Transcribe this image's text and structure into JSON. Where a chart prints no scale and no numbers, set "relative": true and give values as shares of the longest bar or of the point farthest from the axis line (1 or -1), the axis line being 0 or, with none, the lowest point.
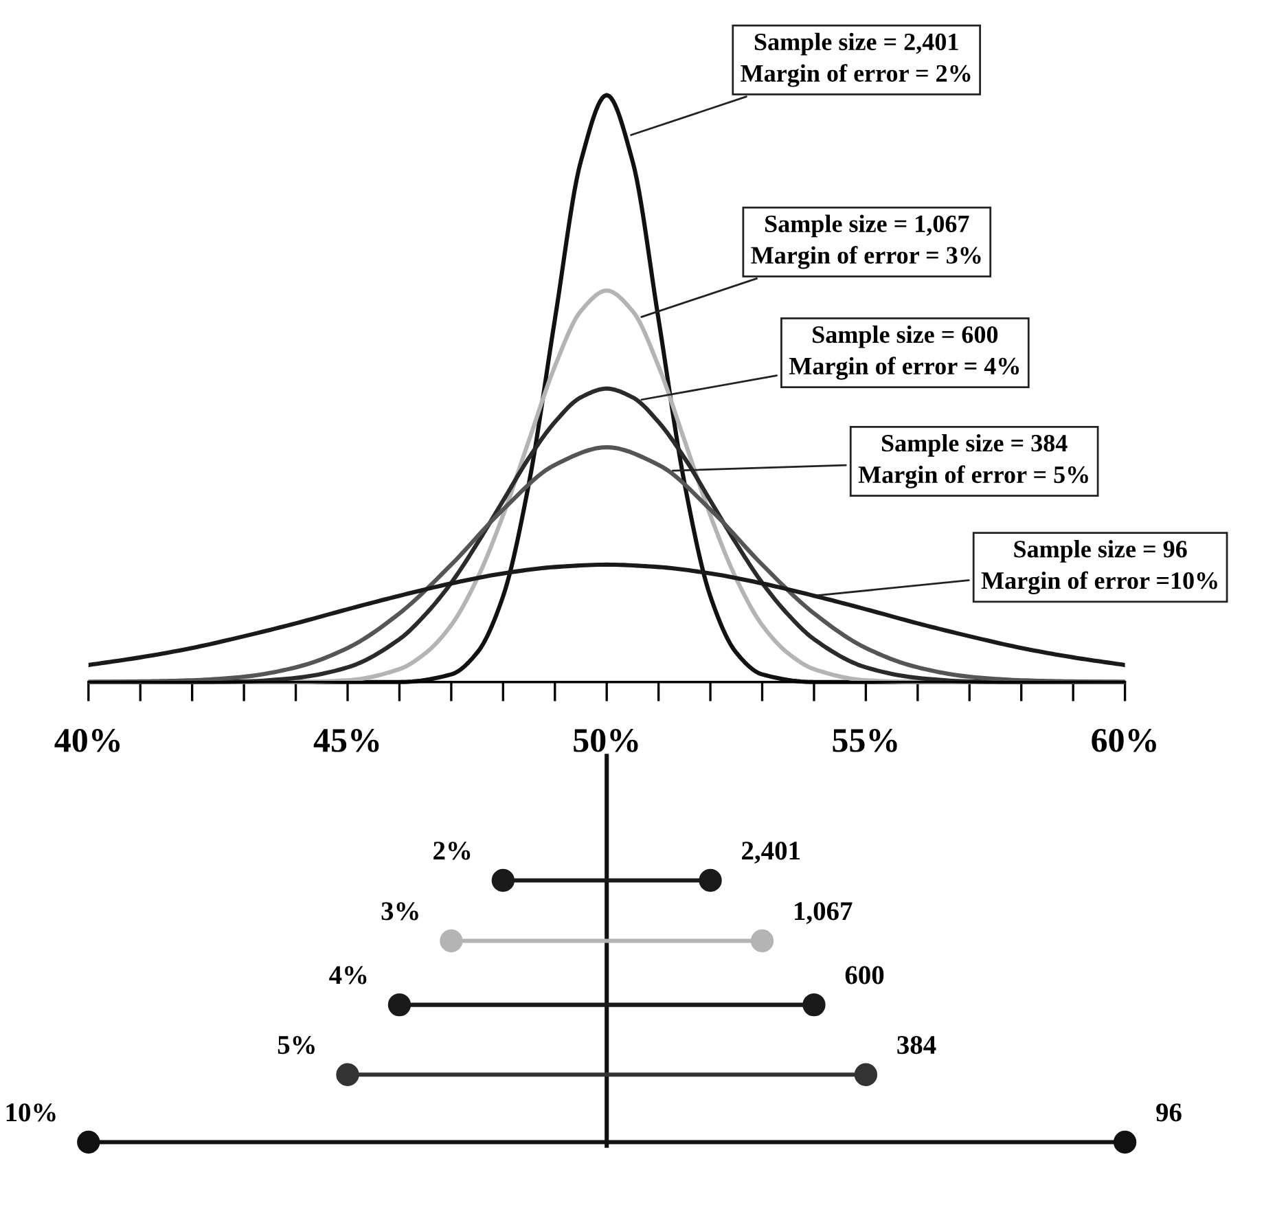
{
  "chart_data": {
    "type": "line",
    "relative": true,
    "xlim": [
      40,
      60
    ],
    "grid": false,
    "xticks": [
      {
        "value": 40,
        "label": "40%"
      },
      {
        "value": 41,
        "label": null
      },
      {
        "value": 42,
        "label": null
      },
      {
        "value": 43,
        "label": null
      },
      {
        "value": 44,
        "label": null
      },
      {
        "value": 45,
        "label": "45%"
      },
      {
        "value": 46,
        "label": null
      },
      {
        "value": 47,
        "label": null
      },
      {
        "value": 48,
        "label": null
      },
      {
        "value": 49,
        "label": null
      },
      {
        "value": 50,
        "label": "50%"
      },
      {
        "value": 51,
        "label": null
      },
      {
        "value": 52,
        "label": null
      },
      {
        "value": 53,
        "label": null
      },
      {
        "value": 54,
        "label": null
      },
      {
        "value": 55,
        "label": "55%"
      },
      {
        "value": 56,
        "label": null
      },
      {
        "value": 57,
        "label": null
      },
      {
        "value": 58,
        "label": null
      },
      {
        "value": 59,
        "label": null
      },
      {
        "value": 60,
        "label": "60%"
      }
    ],
    "series": [
      {
        "color": "#111111",
        "x": [
          40,
          46,
          47,
          47.5,
          48,
          48.5,
          49,
          49.5,
          50,
          50.5,
          51,
          51.5,
          52,
          52.5,
          53,
          54,
          60
        ],
        "values": [
          0,
          0,
          0.013,
          0.05,
          0.146,
          0.339,
          0.618,
          0.887,
          1,
          0.887,
          0.618,
          0.339,
          0.146,
          0.05,
          0.013,
          0,
          0
        ]
      },
      {
        "color": "#b4b4b4",
        "x": [
          40,
          44,
          45,
          46,
          46.5,
          47,
          47.5,
          48,
          48.5,
          49,
          49.5,
          50,
          50.5,
          51,
          51.5,
          52,
          52.5,
          53,
          53.5,
          54,
          55,
          56,
          60
        ],
        "values": [
          0,
          0,
          0.003,
          0.022,
          0.049,
          0.097,
          0.176,
          0.284,
          0.412,
          0.538,
          0.632,
          0.667,
          0.632,
          0.538,
          0.412,
          0.284,
          0.176,
          0.097,
          0.049,
          0.022,
          0.003,
          0,
          0
        ]
      },
      {
        "color": "#2a2a2a",
        "x": [
          40,
          42,
          43,
          44,
          45,
          46,
          46.5,
          47,
          47.5,
          48,
          48.5,
          49,
          49.5,
          50,
          50.5,
          51,
          51.5,
          52,
          52.5,
          53,
          53.5,
          54,
          55,
          56,
          57,
          58,
          60
        ],
        "values": [
          0,
          0,
          0.001,
          0.007,
          0.025,
          0.073,
          0.115,
          0.169,
          0.236,
          0.309,
          0.382,
          0.443,
          0.485,
          0.5,
          0.485,
          0.443,
          0.382,
          0.309,
          0.236,
          0.169,
          0.115,
          0.073,
          0.025,
          0.007,
          0.001,
          0,
          0
        ]
      },
      {
        "color": "#555555",
        "x": [
          40,
          41,
          42,
          43,
          44,
          45,
          46,
          47,
          48,
          49,
          50,
          51,
          52,
          53,
          54,
          55,
          56,
          57,
          58,
          59,
          60
        ],
        "values": [
          0,
          0.001,
          0.003,
          0.009,
          0.025,
          0.058,
          0.117,
          0.2,
          0.294,
          0.37,
          0.4,
          0.37,
          0.294,
          0.2,
          0.117,
          0.058,
          0.025,
          0.009,
          0.003,
          0.001,
          0
        ]
      },
      {
        "color": "#1a1a1a",
        "x": [
          40,
          41,
          42,
          43,
          44,
          45,
          46,
          47,
          48,
          49,
          50,
          51,
          52,
          53,
          54,
          55,
          56,
          57,
          58,
          59,
          60
        ],
        "values": [
          0.029,
          0.042,
          0.058,
          0.078,
          0.1,
          0.124,
          0.147,
          0.168,
          0.185,
          0.196,
          0.2,
          0.196,
          0.185,
          0.168,
          0.147,
          0.124,
          0.1,
          0.078,
          0.058,
          0.042,
          0.029
        ]
      },
      {
        "color": "#111111",
        "x": [
          50,
          50
        ],
        "values": [
          -0.126,
          -0.79
        ]
      },
      {
        "name": "2%",
        "color": "#1a1a1a",
        "marker": "circle",
        "x": [
          48,
          52
        ],
        "values": [
          -0.338,
          -0.338
        ]
      },
      {
        "name": "3%",
        "color": "#b4b4b4",
        "marker": "circle",
        "x": [
          47,
          53
        ],
        "values": [
          -0.441,
          -0.441
        ]
      },
      {
        "name": "4%",
        "color": "#1a1a1a",
        "marker": "circle",
        "x": [
          46,
          54
        ],
        "values": [
          -0.55,
          -0.55
        ]
      },
      {
        "name": "5%",
        "color": "#333333",
        "marker": "circle",
        "x": [
          45,
          55
        ],
        "values": [
          -0.669,
          -0.669
        ]
      },
      {
        "name": "10%",
        "color": "#111111",
        "marker": "circle",
        "x": [
          40,
          60
        ],
        "values": [
          -0.784,
          -0.784
        ]
      }
    ],
    "annotations": [
      {
        "text": "Sample size = 2,401\nMargin of error = 2%",
        "x": 50.4,
        "y": 0.93
      },
      {
        "text": "Sample size = 1,067\nMargin of error = 3%",
        "x": 50.6,
        "y": 0.62
      },
      {
        "text": "Sample size = 600\nMargin of error = 4%",
        "x": 50.6,
        "y": 0.48
      },
      {
        "text": "Sample size = 384\nMargin of error = 5%",
        "x": 51.2,
        "y": 0.36
      },
      {
        "text": "Sample size = 96\nMargin of error =10%",
        "x": 54,
        "y": 0.147
      },
      {
        "text": "2,401",
        "x": 52,
        "y": -0.338
      },
      {
        "text": "1,067",
        "x": 53,
        "y": -0.441
      },
      {
        "text": "600",
        "x": 54,
        "y": -0.55
      },
      {
        "text": "384",
        "x": 55,
        "y": -0.669
      },
      {
        "text": "96",
        "x": 60,
        "y": -0.784
      }
    ]
  }
}
